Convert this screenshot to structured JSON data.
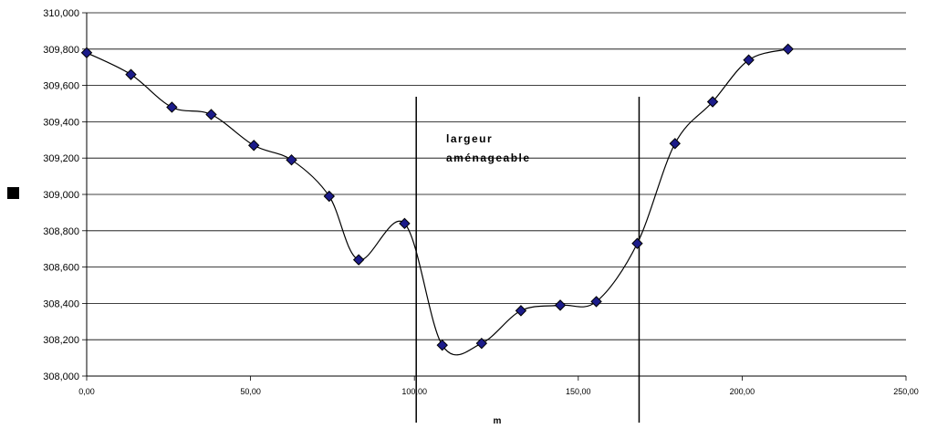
{
  "chart_data": {
    "type": "scatter",
    "title": "",
    "xlabel": "m",
    "ylabel": "",
    "xlim": [
      0,
      250
    ],
    "ylim": [
      308.0,
      310.0
    ],
    "x_ticks": [
      0,
      50,
      100,
      150,
      200,
      250
    ],
    "x_tick_labels": [
      "0,00",
      "50,00",
      "100,00",
      "150,00",
      "200,00",
      "250,00"
    ],
    "y_ticks": [
      308.0,
      308.2,
      308.4,
      308.6,
      308.8,
      309.0,
      309.2,
      309.4,
      309.6,
      309.8,
      310.0
    ],
    "y_tick_labels": [
      "308,000",
      "308,200",
      "308,400",
      "308,600",
      "308,800",
      "309,000",
      "309,200",
      "309,400",
      "309,600",
      "309,800",
      "310,000"
    ],
    "grid": "horizontal",
    "legend": "left",
    "smooth_line": true,
    "series": [
      {
        "x": [
          0,
          13.5,
          26,
          38,
          51,
          62.5,
          74,
          83,
          97,
          108.5,
          120.5,
          132.5,
          144.5,
          155.5,
          168,
          179.5,
          191,
          202,
          214
        ],
        "y": [
          309.78,
          309.66,
          309.48,
          309.44,
          309.27,
          309.19,
          308.99,
          308.64,
          308.84,
          308.17,
          308.18,
          308.36,
          308.39,
          308.41,
          308.73,
          309.28,
          309.51,
          309.74,
          309.8
        ]
      }
    ],
    "vertical_lines": [
      100,
      168
    ],
    "annotation": {
      "lines": [
        "largeur",
        "aménageable"
      ]
    },
    "colors": {
      "marker_fill": "#1c1c8a",
      "marker_stroke": "#000000",
      "line": "#000000",
      "grid": "#000000",
      "legend_swatch": "#000000"
    }
  }
}
